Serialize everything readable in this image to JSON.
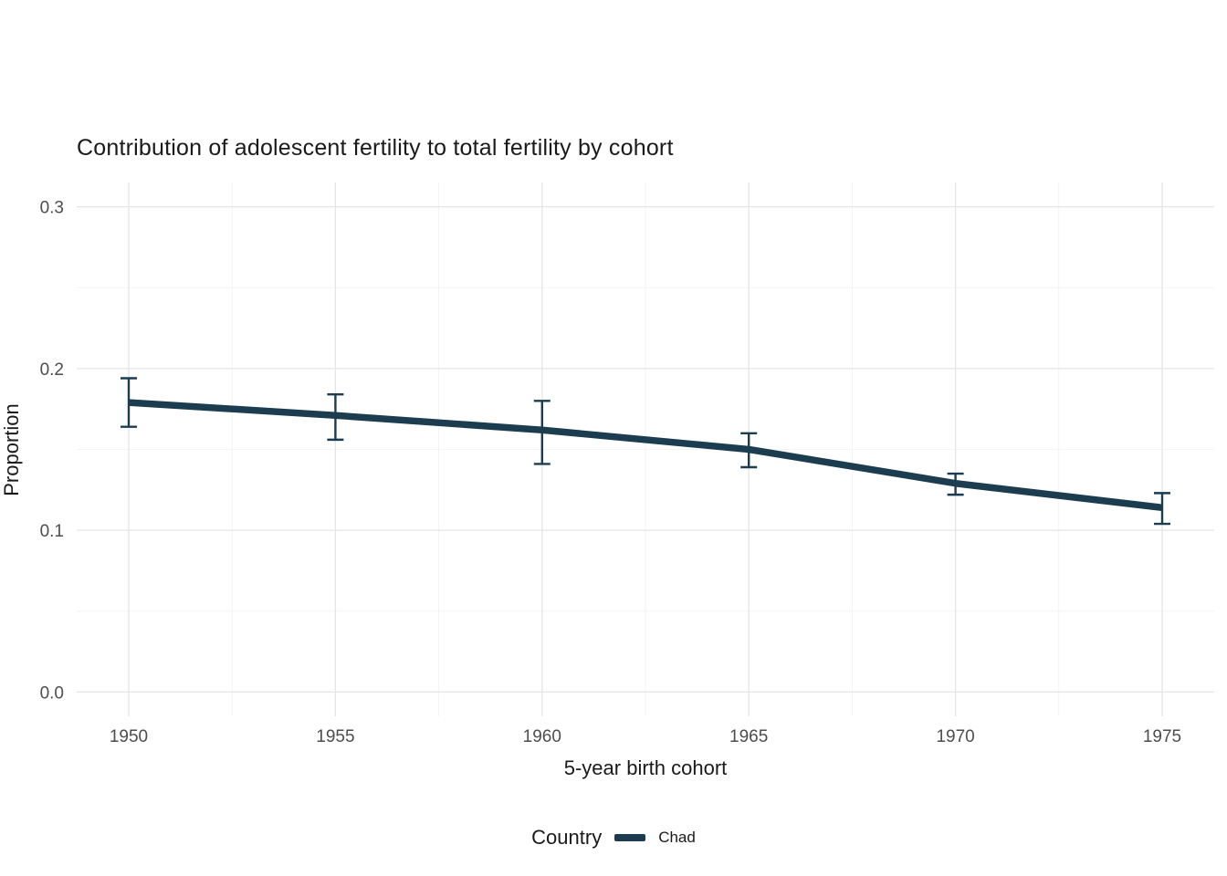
{
  "chart_data": {
    "type": "line",
    "title": "Contribution of adolescent fertility to total fertility by cohort",
    "xlabel": "5-year birth cohort",
    "ylabel": "Proportion",
    "x": [
      1950,
      1955,
      1960,
      1965,
      1970,
      1975
    ],
    "series": [
      {
        "name": "Chad",
        "color": "#1c3d4f",
        "values": [
          0.179,
          0.171,
          0.162,
          0.15,
          0.129,
          0.114
        ],
        "ci_lower": [
          0.164,
          0.156,
          0.141,
          0.139,
          0.122,
          0.104
        ],
        "ci_upper": [
          0.194,
          0.184,
          0.18,
          0.16,
          0.135,
          0.123
        ]
      }
    ],
    "ylim": [
      0,
      0.3
    ],
    "yticks": [
      0,
      0.1,
      0.2,
      0.3
    ],
    "ytick_labels": [
      "0.0",
      "0.1",
      "0.2",
      "0.3"
    ],
    "yticks_minor": [
      0.05,
      0.15,
      0.25
    ],
    "xticks": [
      1950,
      1955,
      1960,
      1965,
      1970,
      1975
    ],
    "xtick_labels": [
      "1950",
      "1955",
      "1960",
      "1965",
      "1970",
      "1975"
    ],
    "xticks_minor": [
      1952.5,
      1957.5,
      1962.5,
      1967.5,
      1972.5
    ],
    "grid": true,
    "grid_major_color": "#e5e5e5",
    "grid_minor_color": "#f0f0f0",
    "tick_label_color": "#4d4d4d",
    "legend": {
      "title": "Country",
      "position": "bottom",
      "entries": [
        {
          "label": "Chad",
          "color": "#1c3d4f"
        }
      ]
    }
  }
}
